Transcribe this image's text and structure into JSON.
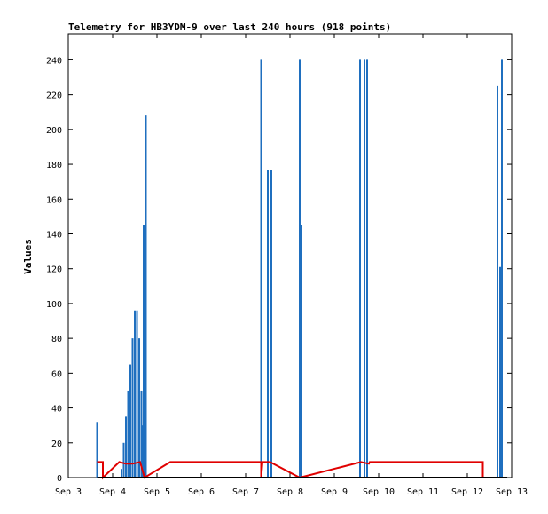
{
  "chart_data": {
    "type": "line",
    "title": "Telemetry for HB3YDM-9 over last 240 hours (918 points)",
    "ylabel": "Values",
    "xlabel": "",
    "ylim": [
      0,
      255
    ],
    "xlim": [
      "Sep 3",
      "Sep 13"
    ],
    "x_ticks": [
      "Sep 3",
      "Sep 4",
      "Sep 5",
      "Sep 6",
      "Sep 7",
      "Sep 8",
      "Sep 9",
      "Sep 10",
      "Sep 11",
      "Sep 12",
      "Sep 13"
    ],
    "y_ticks": [
      0,
      20,
      40,
      60,
      80,
      100,
      120,
      140,
      160,
      180,
      200,
      220,
      240
    ],
    "grid": false,
    "colors": {
      "series_blue": "#1f6fbf",
      "series_red": "#e00000",
      "series_black": "#000000"
    },
    "series": [
      {
        "color": "#1f6fbf",
        "style": "spikes",
        "points": [
          {
            "x": 3.65,
            "y": 32
          },
          {
            "x": 4.2,
            "y": 5
          },
          {
            "x": 4.25,
            "y": 20
          },
          {
            "x": 4.3,
            "y": 35
          },
          {
            "x": 4.35,
            "y": 50
          },
          {
            "x": 4.4,
            "y": 65
          },
          {
            "x": 4.45,
            "y": 80
          },
          {
            "x": 4.5,
            "y": 96
          },
          {
            "x": 4.55,
            "y": 96
          },
          {
            "x": 4.6,
            "y": 80
          },
          {
            "x": 4.65,
            "y": 50
          },
          {
            "x": 4.68,
            "y": 30
          },
          {
            "x": 4.7,
            "y": 145
          },
          {
            "x": 4.72,
            "y": 75
          },
          {
            "x": 4.75,
            "y": 208
          },
          {
            "x": 7.35,
            "y": 240
          },
          {
            "x": 7.5,
            "y": 177
          },
          {
            "x": 7.58,
            "y": 177
          },
          {
            "x": 8.22,
            "y": 240
          },
          {
            "x": 8.26,
            "y": 145
          },
          {
            "x": 9.58,
            "y": 240
          },
          {
            "x": 9.68,
            "y": 240
          },
          {
            "x": 9.74,
            "y": 240
          },
          {
            "x": 12.68,
            "y": 225
          },
          {
            "x": 12.74,
            "y": 121
          },
          {
            "x": 12.78,
            "y": 240
          }
        ]
      },
      {
        "color": "#e00000",
        "style": "line",
        "points": [
          {
            "x": 3.65,
            "y": 9
          },
          {
            "x": 3.78,
            "y": 9
          },
          {
            "x": 3.78,
            "y": 0
          },
          {
            "x": 4.15,
            "y": 9
          },
          {
            "x": 4.3,
            "y": 8
          },
          {
            "x": 4.45,
            "y": 8
          },
          {
            "x": 4.62,
            "y": 9
          },
          {
            "x": 4.72,
            "y": 0
          },
          {
            "x": 5.3,
            "y": 9
          },
          {
            "x": 7.35,
            "y": 9
          },
          {
            "x": 7.35,
            "y": 0
          },
          {
            "x": 7.38,
            "y": 9
          },
          {
            "x": 7.55,
            "y": 9
          },
          {
            "x": 8.22,
            "y": 0
          },
          {
            "x": 9.6,
            "y": 9
          },
          {
            "x": 9.78,
            "y": 8
          },
          {
            "x": 9.8,
            "y": 9
          },
          {
            "x": 12.35,
            "y": 9
          },
          {
            "x": 12.35,
            "y": 0
          },
          {
            "x": 12.9,
            "y": 0
          }
        ]
      },
      {
        "color": "#000000",
        "style": "line",
        "points": [
          {
            "x": 3.65,
            "y": 0
          },
          {
            "x": 12.9,
            "y": 0
          }
        ]
      }
    ]
  }
}
